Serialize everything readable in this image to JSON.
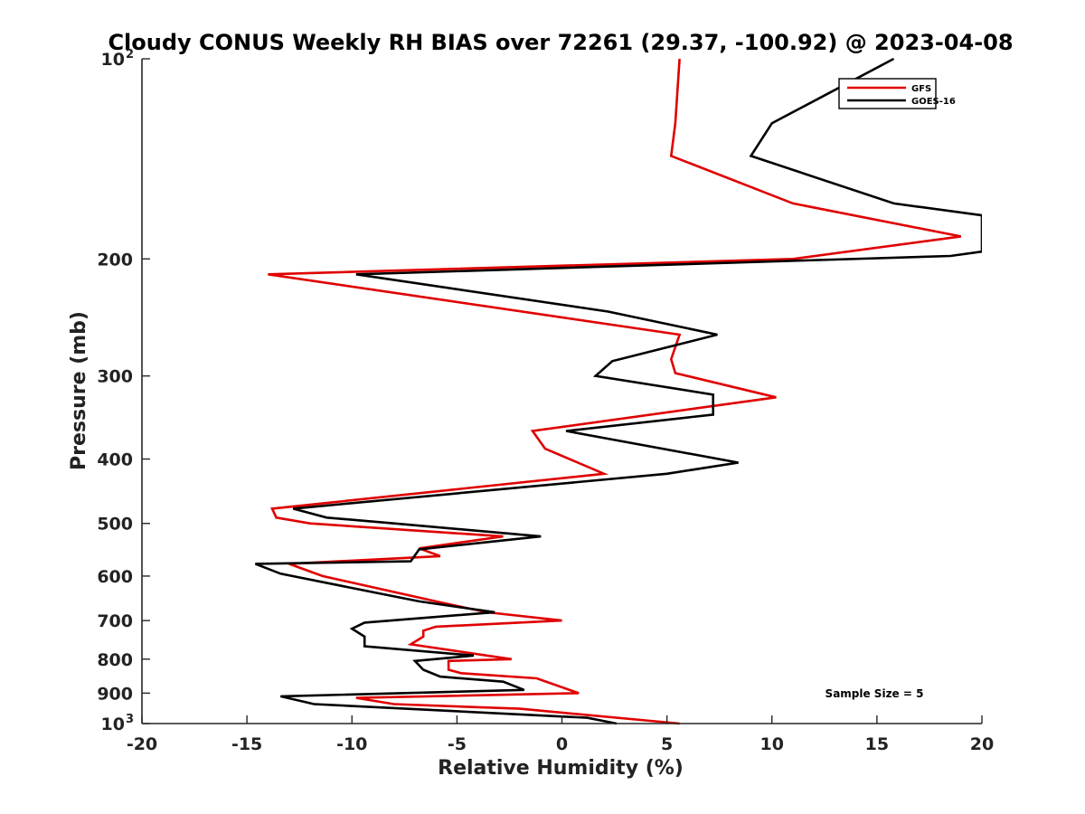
{
  "chart_data": {
    "type": "line",
    "title": "Cloudy CONUS Weekly RH BIAS over 72261 (29.37, -100.92) @ 2023-04-08",
    "xlabel": "Relative Humidity (%)",
    "ylabel": "Pressure (mb)",
    "xlim": [
      -20,
      20
    ],
    "ylim": [
      100,
      1000
    ],
    "y_scale": "log",
    "y_reversed": true,
    "grid": false,
    "legend_position": "top-right",
    "x_ticks": [
      -20,
      -15,
      -10,
      -5,
      0,
      5,
      10,
      15,
      20
    ],
    "x_tick_labels": [
      "-20",
      "-15",
      "-10",
      "-5",
      "0",
      "5",
      "10",
      "15",
      "20"
    ],
    "y_ticks": [
      100,
      200,
      300,
      400,
      500,
      600,
      700,
      800,
      900,
      1000
    ],
    "y_tick_labels": [
      {
        "value": 100,
        "base": "10",
        "sup": "2"
      },
      {
        "value": 200,
        "base": "200",
        "sup": ""
      },
      {
        "value": 300,
        "base": "300",
        "sup": ""
      },
      {
        "value": 400,
        "base": "400",
        "sup": ""
      },
      {
        "value": 500,
        "base": "500",
        "sup": ""
      },
      {
        "value": 600,
        "base": "600",
        "sup": ""
      },
      {
        "value": 700,
        "base": "700",
        "sup": ""
      },
      {
        "value": 800,
        "base": "800",
        "sup": ""
      },
      {
        "value": 900,
        "base": "900",
        "sup": ""
      },
      {
        "value": 1000,
        "base": "10",
        "sup": "3"
      }
    ],
    "annotation": "Sample Size = 5",
    "series": [
      {
        "name": "GFS",
        "color": "#e00000",
        "points": [
          [
            5.6,
            100
          ],
          [
            5.4,
            125
          ],
          [
            5.2,
            140
          ],
          [
            11.0,
            165
          ],
          [
            19.0,
            185
          ],
          [
            11.0,
            200
          ],
          [
            -14.0,
            211
          ],
          [
            5.6,
            260
          ],
          [
            5.2,
            283
          ],
          [
            5.4,
            297
          ],
          [
            10.2,
            323
          ],
          [
            -1.4,
            363
          ],
          [
            -0.8,
            386
          ],
          [
            2.0,
            421
          ],
          [
            -13.8,
            475
          ],
          [
            -13.6,
            490
          ],
          [
            -12.0,
            500
          ],
          [
            -2.8,
            523
          ],
          [
            -6.8,
            545
          ],
          [
            -5.8,
            560
          ],
          [
            -13.0,
            575
          ],
          [
            -11.4,
            600
          ],
          [
            -6.0,
            655
          ],
          [
            -3.6,
            680
          ],
          [
            0.0,
            700
          ],
          [
            -6.0,
            715
          ],
          [
            -6.6,
            725
          ],
          [
            -6.6,
            740
          ],
          [
            -7.2,
            760
          ],
          [
            -2.4,
            800
          ],
          [
            -5.4,
            805
          ],
          [
            -5.4,
            830
          ],
          [
            -4.8,
            840
          ],
          [
            -1.2,
            855
          ],
          [
            0.8,
            900
          ],
          [
            -9.8,
            915
          ],
          [
            -8.0,
            935
          ],
          [
            -2.0,
            950
          ],
          [
            5.6,
            1000
          ]
        ]
      },
      {
        "name": "GOES-16",
        "color": "#000000",
        "points": [
          [
            15.8,
            100
          ],
          [
            10.0,
            125
          ],
          [
            9.0,
            140
          ],
          [
            15.8,
            165
          ],
          [
            20.0,
            172
          ],
          [
            20.0,
            195
          ],
          [
            18.5,
            198
          ],
          [
            -9.8,
            211
          ],
          [
            2.2,
            240
          ],
          [
            7.4,
            260
          ],
          [
            2.4,
            285
          ],
          [
            1.6,
            300
          ],
          [
            7.2,
            320
          ],
          [
            7.2,
            343
          ],
          [
            0.2,
            363
          ],
          [
            8.4,
            405
          ],
          [
            5.0,
            421
          ],
          [
            -12.8,
            475
          ],
          [
            -11.2,
            490
          ],
          [
            -8.0,
            500
          ],
          [
            -1.0,
            523
          ],
          [
            -6.8,
            547
          ],
          [
            -7.2,
            570
          ],
          [
            -14.6,
            575
          ],
          [
            -13.4,
            595
          ],
          [
            -8.4,
            640
          ],
          [
            -6.8,
            655
          ],
          [
            -3.2,
            680
          ],
          [
            -9.4,
            705
          ],
          [
            -10.0,
            720
          ],
          [
            -9.4,
            740
          ],
          [
            -9.4,
            765
          ],
          [
            -4.2,
            790
          ],
          [
            -7.0,
            805
          ],
          [
            -6.6,
            830
          ],
          [
            -5.8,
            850
          ],
          [
            -2.8,
            865
          ],
          [
            -1.8,
            890
          ],
          [
            -13.4,
            910
          ],
          [
            -11.8,
            935
          ],
          [
            1.2,
            980
          ],
          [
            2.6,
            1000
          ]
        ]
      }
    ]
  }
}
